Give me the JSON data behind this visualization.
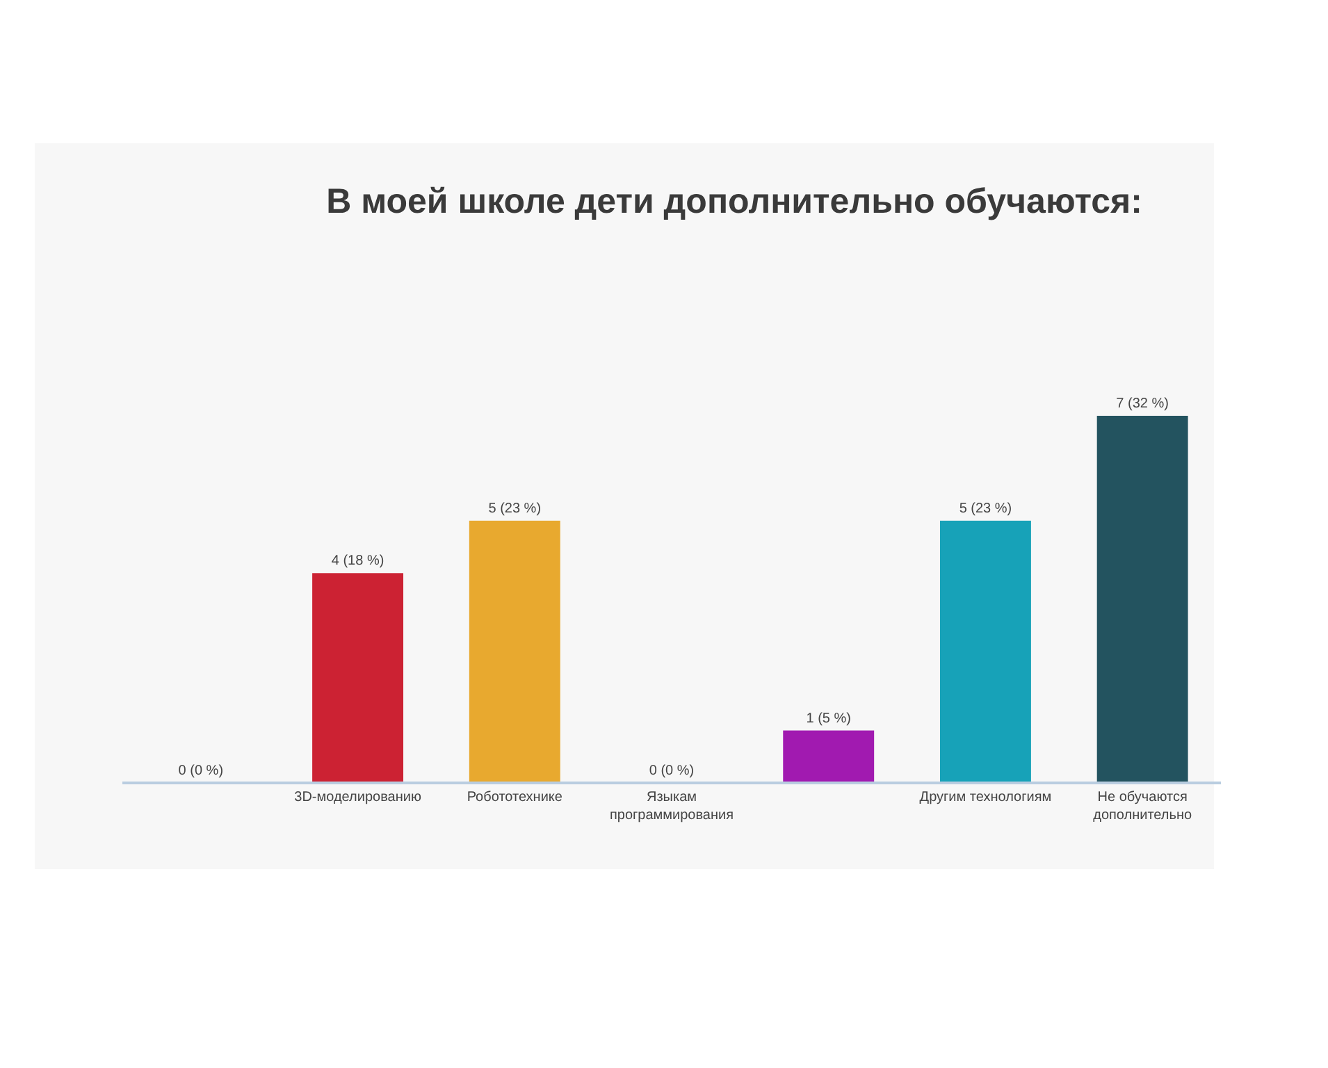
{
  "chart_data": {
    "type": "bar",
    "title": "В моей школе дети дополнительно обучаются:",
    "categories": [
      null,
      "3D-моделированию",
      "Робототехнике",
      "Языкам программирования",
      null,
      "Другим технологиям",
      "Не обучаются дополнительно"
    ],
    "values": [
      0,
      4,
      5,
      0,
      1,
      5,
      7
    ],
    "colors": [
      "#cc2233",
      "#cc2233",
      "#e8a92f",
      "#17a2b8",
      "#a11ab0",
      "#17a2b8",
      "#23535f"
    ],
    "value_labels": [
      "0 (0 %)",
      "4 (18 %)",
      "5 (23 %)",
      "0 (0 %)",
      "1 (5 %)",
      "5 (23 %)",
      "7 (32 %)"
    ],
    "grid": false
  }
}
